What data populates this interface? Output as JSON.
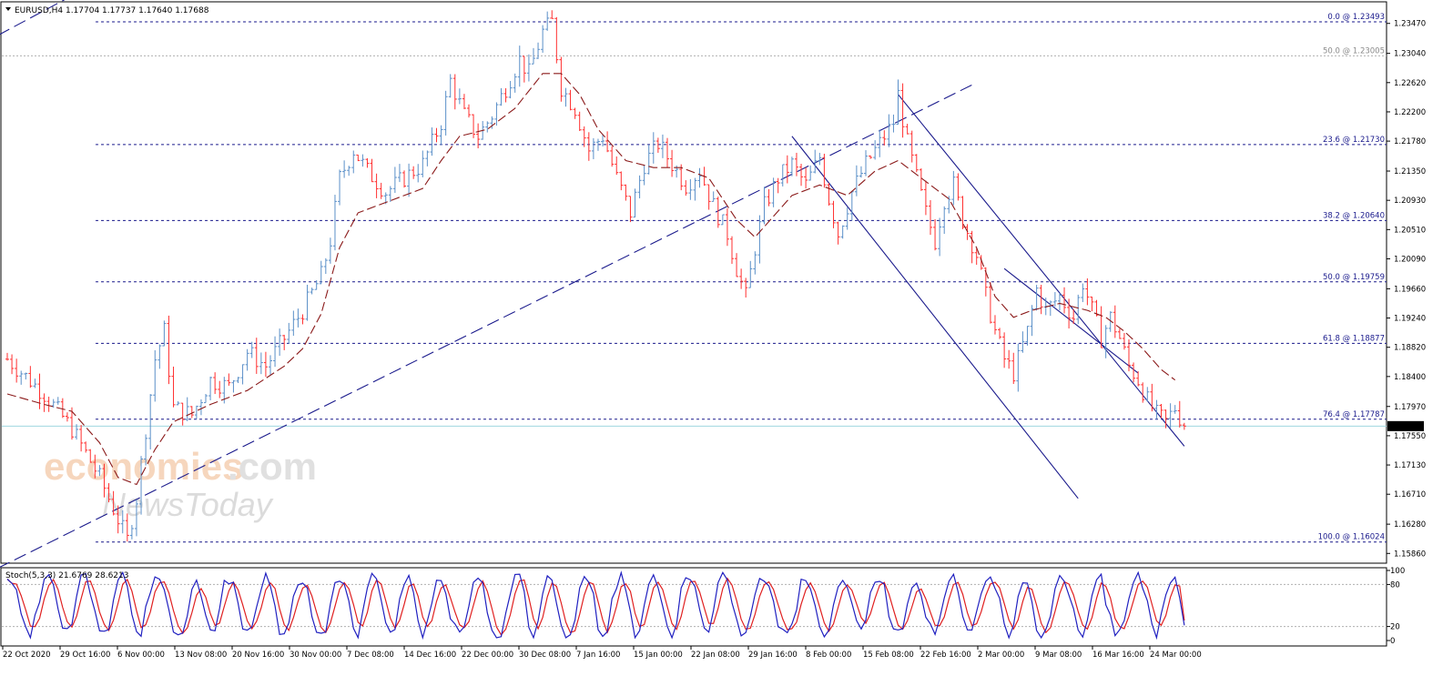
{
  "chart_data": {
    "type": "candlestick",
    "symbol_header": "EURUSD,H4  1.17704 1.17737 1.17640 1.17688",
    "current_price": "1.17688",
    "price_axis_ticks": [
      "1.23470",
      "1.23040",
      "1.22620",
      "1.22200",
      "1.21780",
      "1.21350",
      "1.20930",
      "1.20510",
      "1.20090",
      "1.19660",
      "1.19240",
      "1.18820",
      "1.18400",
      "1.17970",
      "1.17550",
      "1.17130",
      "1.16710",
      "1.16280",
      "1.15860"
    ],
    "ylim": [
      1.1572,
      1.2378
    ],
    "time_axis_labels": [
      "22 Oct 2020",
      "29 Oct 16:00",
      "6 Nov 00:00",
      "13 Nov 08:00",
      "20 Nov 16:00",
      "30 Nov 00:00",
      "7 Dec 08:00",
      "14 Dec 16:00",
      "22 Dec 00:00",
      "30 Dec 08:00",
      "7 Jan 16:00",
      "15 Jan 00:00",
      "22 Jan 08:00",
      "29 Jan 16:00",
      "8 Feb 00:00",
      "15 Feb 08:00",
      "22 Feb 16:00",
      "2 Mar 00:00",
      "9 Mar 08:00",
      "16 Mar 16:00",
      "24 Mar 00:00"
    ],
    "fibonacci_levels": [
      {
        "label": "0.0 @ 1.23493",
        "price": 1.23493,
        "muted": false
      },
      {
        "label": "50.0 @ 1.23005",
        "price": 1.23005,
        "muted": true
      },
      {
        "label": "23.6 @ 1.21730",
        "price": 1.2173,
        "muted": false
      },
      {
        "label": "38.2 @ 1.20640",
        "price": 1.2064,
        "muted": false
      },
      {
        "label": "50.0 @ 1.19759",
        "price": 1.19759,
        "muted": false
      },
      {
        "label": "61.8 @ 1.18877",
        "price": 1.18877,
        "muted": false
      },
      {
        "label": "76.4 @ 1.17787",
        "price": 1.17787,
        "muted": false
      },
      {
        "label": "100.0 @ 1.16024",
        "price": 1.16024,
        "muted": false
      }
    ],
    "price_path": [
      [
        0,
        1.1865
      ],
      [
        8,
        1.1815
      ],
      [
        14,
        1.1765
      ],
      [
        20,
        1.1695
      ],
      [
        24,
        1.1635
      ],
      [
        26,
        1.1605
      ],
      [
        28,
        1.1665
      ],
      [
        30,
        1.1765
      ],
      [
        32,
        1.1865
      ],
      [
        34,
        1.1905
      ],
      [
        36,
        1.1795
      ],
      [
        40,
        1.1785
      ],
      [
        44,
        1.1835
      ],
      [
        48,
        1.1825
      ],
      [
        52,
        1.1875
      ],
      [
        56,
        1.1855
      ],
      [
        60,
        1.1895
      ],
      [
        64,
        1.1935
      ],
      [
        68,
        1.1985
      ],
      [
        70,
        1.2035
      ],
      [
        72,
        1.2125
      ],
      [
        75,
        1.2165
      ],
      [
        78,
        1.2135
      ],
      [
        82,
        1.2105
      ],
      [
        86,
        1.2125
      ],
      [
        90,
        1.2145
      ],
      [
        94,
        1.2205
      ],
      [
        96,
        1.2265
      ],
      [
        99,
        1.2215
      ],
      [
        102,
        1.2185
      ],
      [
        105,
        1.2215
      ],
      [
        108,
        1.2255
      ],
      [
        111,
        1.2295
      ],
      [
        113,
        1.2275
      ],
      [
        116,
        1.2335
      ],
      [
        118,
        1.2349
      ],
      [
        120,
        1.2255
      ],
      [
        123,
        1.2225
      ],
      [
        126,
        1.2165
      ],
      [
        129,
        1.2185
      ],
      [
        132,
        1.2125
      ],
      [
        135,
        1.2075
      ],
      [
        138,
        1.2145
      ],
      [
        141,
        1.2175
      ],
      [
        144,
        1.2145
      ],
      [
        147,
        1.2115
      ],
      [
        150,
        1.2135
      ],
      [
        153,
        1.2085
      ],
      [
        156,
        1.2045
      ],
      [
        158,
        1.1995
      ],
      [
        160,
        1.1955
      ],
      [
        162,
        1.2025
      ],
      [
        164,
        1.2085
      ],
      [
        167,
        1.2125
      ],
      [
        170,
        1.2145
      ],
      [
        173,
        1.2115
      ],
      [
        176,
        1.2155
      ],
      [
        178,
        1.2095
      ],
      [
        180,
        1.2045
      ],
      [
        183,
        1.2105
      ],
      [
        186,
        1.2145
      ],
      [
        189,
        1.2175
      ],
      [
        192,
        1.2205
      ],
      [
        193,
        1.2245
      ],
      [
        195,
        1.2175
      ],
      [
        197,
        1.2125
      ],
      [
        199,
        1.2075
      ],
      [
        201,
        1.2035
      ],
      [
        203,
        1.2095
      ],
      [
        205,
        1.2115
      ],
      [
        207,
        1.2065
      ],
      [
        210,
        1.2015
      ],
      [
        212,
        1.1955
      ],
      [
        214,
        1.1905
      ],
      [
        216,
        1.1865
      ],
      [
        218,
        1.1845
      ],
      [
        221,
        1.1905
      ],
      [
        223,
        1.1965
      ],
      [
        225,
        1.1935
      ],
      [
        228,
        1.1955
      ],
      [
        231,
        1.1925
      ],
      [
        233,
        1.1975
      ],
      [
        235,
        1.1935
      ],
      [
        237,
        1.1895
      ],
      [
        239,
        1.1925
      ],
      [
        241,
        1.1895
      ],
      [
        243,
        1.1855
      ],
      [
        245,
        1.1835
      ],
      [
        247,
        1.1805
      ],
      [
        249,
        1.1785
      ],
      [
        251,
        1.1775
      ],
      [
        253,
        1.1795
      ],
      [
        255,
        1.1768
      ]
    ],
    "ema_path": [
      [
        0,
        1.1815
      ],
      [
        8,
        1.18
      ],
      [
        14,
        1.179
      ],
      [
        20,
        1.1745
      ],
      [
        24,
        1.1695
      ],
      [
        28,
        1.1685
      ],
      [
        32,
        1.1735
      ],
      [
        36,
        1.1775
      ],
      [
        44,
        1.18
      ],
      [
        52,
        1.182
      ],
      [
        60,
        1.1855
      ],
      [
        64,
        1.188
      ],
      [
        68,
        1.193
      ],
      [
        72,
        1.2025
      ],
      [
        76,
        1.2075
      ],
      [
        82,
        1.209
      ],
      [
        90,
        1.211
      ],
      [
        94,
        1.215
      ],
      [
        98,
        1.2185
      ],
      [
        104,
        1.2195
      ],
      [
        110,
        1.2225
      ],
      [
        116,
        1.2275
      ],
      [
        120,
        1.2275
      ],
      [
        124,
        1.2245
      ],
      [
        128,
        1.2195
      ],
      [
        134,
        1.215
      ],
      [
        140,
        1.214
      ],
      [
        146,
        1.214
      ],
      [
        152,
        1.2125
      ],
      [
        158,
        1.2065
      ],
      [
        162,
        1.204
      ],
      [
        166,
        1.207
      ],
      [
        170,
        1.21
      ],
      [
        176,
        1.2115
      ],
      [
        182,
        1.21
      ],
      [
        188,
        1.2135
      ],
      [
        193,
        1.215
      ],
      [
        198,
        1.2125
      ],
      [
        204,
        1.2095
      ],
      [
        210,
        1.2025
      ],
      [
        214,
        1.1955
      ],
      [
        218,
        1.1925
      ],
      [
        222,
        1.1935
      ],
      [
        228,
        1.1945
      ],
      [
        234,
        1.1935
      ],
      [
        238,
        1.1925
      ],
      [
        242,
        1.1905
      ],
      [
        246,
        1.188
      ],
      [
        250,
        1.185
      ],
      [
        253,
        1.1835
      ]
    ],
    "trendlines": [
      {
        "name": "long-ascending-trendline",
        "style": "dashed",
        "from": [
          -2,
          1.1565
        ],
        "to": [
          210,
          1.2262
        ]
      },
      {
        "name": "upper-left-trendline-segment",
        "style": "dashed",
        "from": [
          -2,
          1.233
        ],
        "to": [
          20,
          1.2408
        ]
      },
      {
        "name": "channel-lower",
        "style": "solid",
        "from": [
          170,
          1.2185
        ],
        "to": [
          232,
          1.1665
        ]
      },
      {
        "name": "channel-upper",
        "style": "solid",
        "from": [
          193,
          1.2245
        ],
        "to": [
          255,
          1.174
        ]
      },
      {
        "name": "channel-mid",
        "style": "solid",
        "from": [
          216,
          1.1995
        ],
        "to": [
          245,
          1.1845
        ]
      }
    ],
    "stochastic": {
      "label": "Stoch(5,3,3) 21.6769 28.6213",
      "axis_ticks": [
        "100",
        "80",
        "20",
        "0"
      ],
      "levels": [
        80,
        20
      ],
      "main_color": "#2020c0",
      "signal_color": "#e02020",
      "last_main": 21.6769,
      "last_signal": 28.6213
    },
    "colors": {
      "bull": "#5a8fc8",
      "bear": "#ff3030",
      "ema": "#8b1a1a",
      "trend": "#1a1a8c",
      "fib": "#1a1a8c",
      "current_line": "#9fd7e0"
    }
  },
  "watermark": {
    "line1_a": "economies",
    "line1_b": ".com",
    "line2": "NewsToday"
  }
}
